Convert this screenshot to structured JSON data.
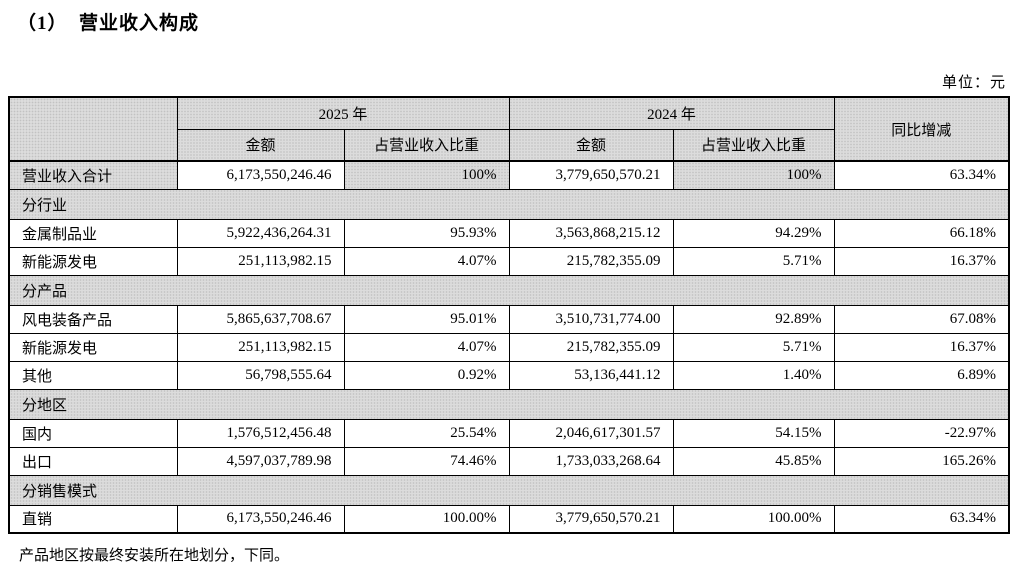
{
  "page": {
    "title": "（1）  营业收入构成",
    "unit_label": "单位：元",
    "footnote": "产品地区按最终安装所在地划分，下同。"
  },
  "colors": {
    "header_bg": "#dcdcdc",
    "border": "#000000",
    "text": "#000000"
  },
  "table": {
    "header": {
      "year_2025": "2025 年",
      "year_2024": "2024 年",
      "amount": "金额",
      "ratio": "占营业收入比重",
      "yoy": "同比增减"
    },
    "rows": [
      {
        "type": "data",
        "total": true,
        "label": "营业收入合计",
        "a2025": "6,173,550,246.46",
        "r2025": "100%",
        "a2024": "3,779,650,570.21",
        "r2024": "100%",
        "yoy": "63.34%"
      },
      {
        "type": "section",
        "label": "分行业"
      },
      {
        "type": "data",
        "label": "金属制品业",
        "a2025": "5,922,436,264.31",
        "r2025": "95.93%",
        "a2024": "3,563,868,215.12",
        "r2024": "94.29%",
        "yoy": "66.18%"
      },
      {
        "type": "data",
        "label": "新能源发电",
        "a2025": "251,113,982.15",
        "r2025": "4.07%",
        "a2024": "215,782,355.09",
        "r2024": "5.71%",
        "yoy": "16.37%"
      },
      {
        "type": "section",
        "label": "分产品"
      },
      {
        "type": "data",
        "label": "风电装备产品",
        "a2025": "5,865,637,708.67",
        "r2025": "95.01%",
        "a2024": "3,510,731,774.00",
        "r2024": "92.89%",
        "yoy": "67.08%"
      },
      {
        "type": "data",
        "label": "新能源发电",
        "a2025": "251,113,982.15",
        "r2025": "4.07%",
        "a2024": "215,782,355.09",
        "r2024": "5.71%",
        "yoy": "16.37%"
      },
      {
        "type": "data",
        "label": "其他",
        "a2025": "56,798,555.64",
        "r2025": "0.92%",
        "a2024": "53,136,441.12",
        "r2024": "1.40%",
        "yoy": "6.89%"
      },
      {
        "type": "section",
        "label": "分地区"
      },
      {
        "type": "data",
        "label": "国内",
        "a2025": "1,576,512,456.48",
        "r2025": "25.54%",
        "a2024": "2,046,617,301.57",
        "r2024": "54.15%",
        "yoy": "-22.97%"
      },
      {
        "type": "data",
        "label": "出口",
        "a2025": "4,597,037,789.98",
        "r2025": "74.46%",
        "a2024": "1,733,033,268.64",
        "r2024": "45.85%",
        "yoy": "165.26%"
      },
      {
        "type": "section",
        "label": "分销售模式"
      },
      {
        "type": "data",
        "label": "直销",
        "a2025": "6,173,550,246.46",
        "r2025": "100.00%",
        "a2024": "3,779,650,570.21",
        "r2024": "100.00%",
        "yoy": "63.34%"
      }
    ]
  }
}
